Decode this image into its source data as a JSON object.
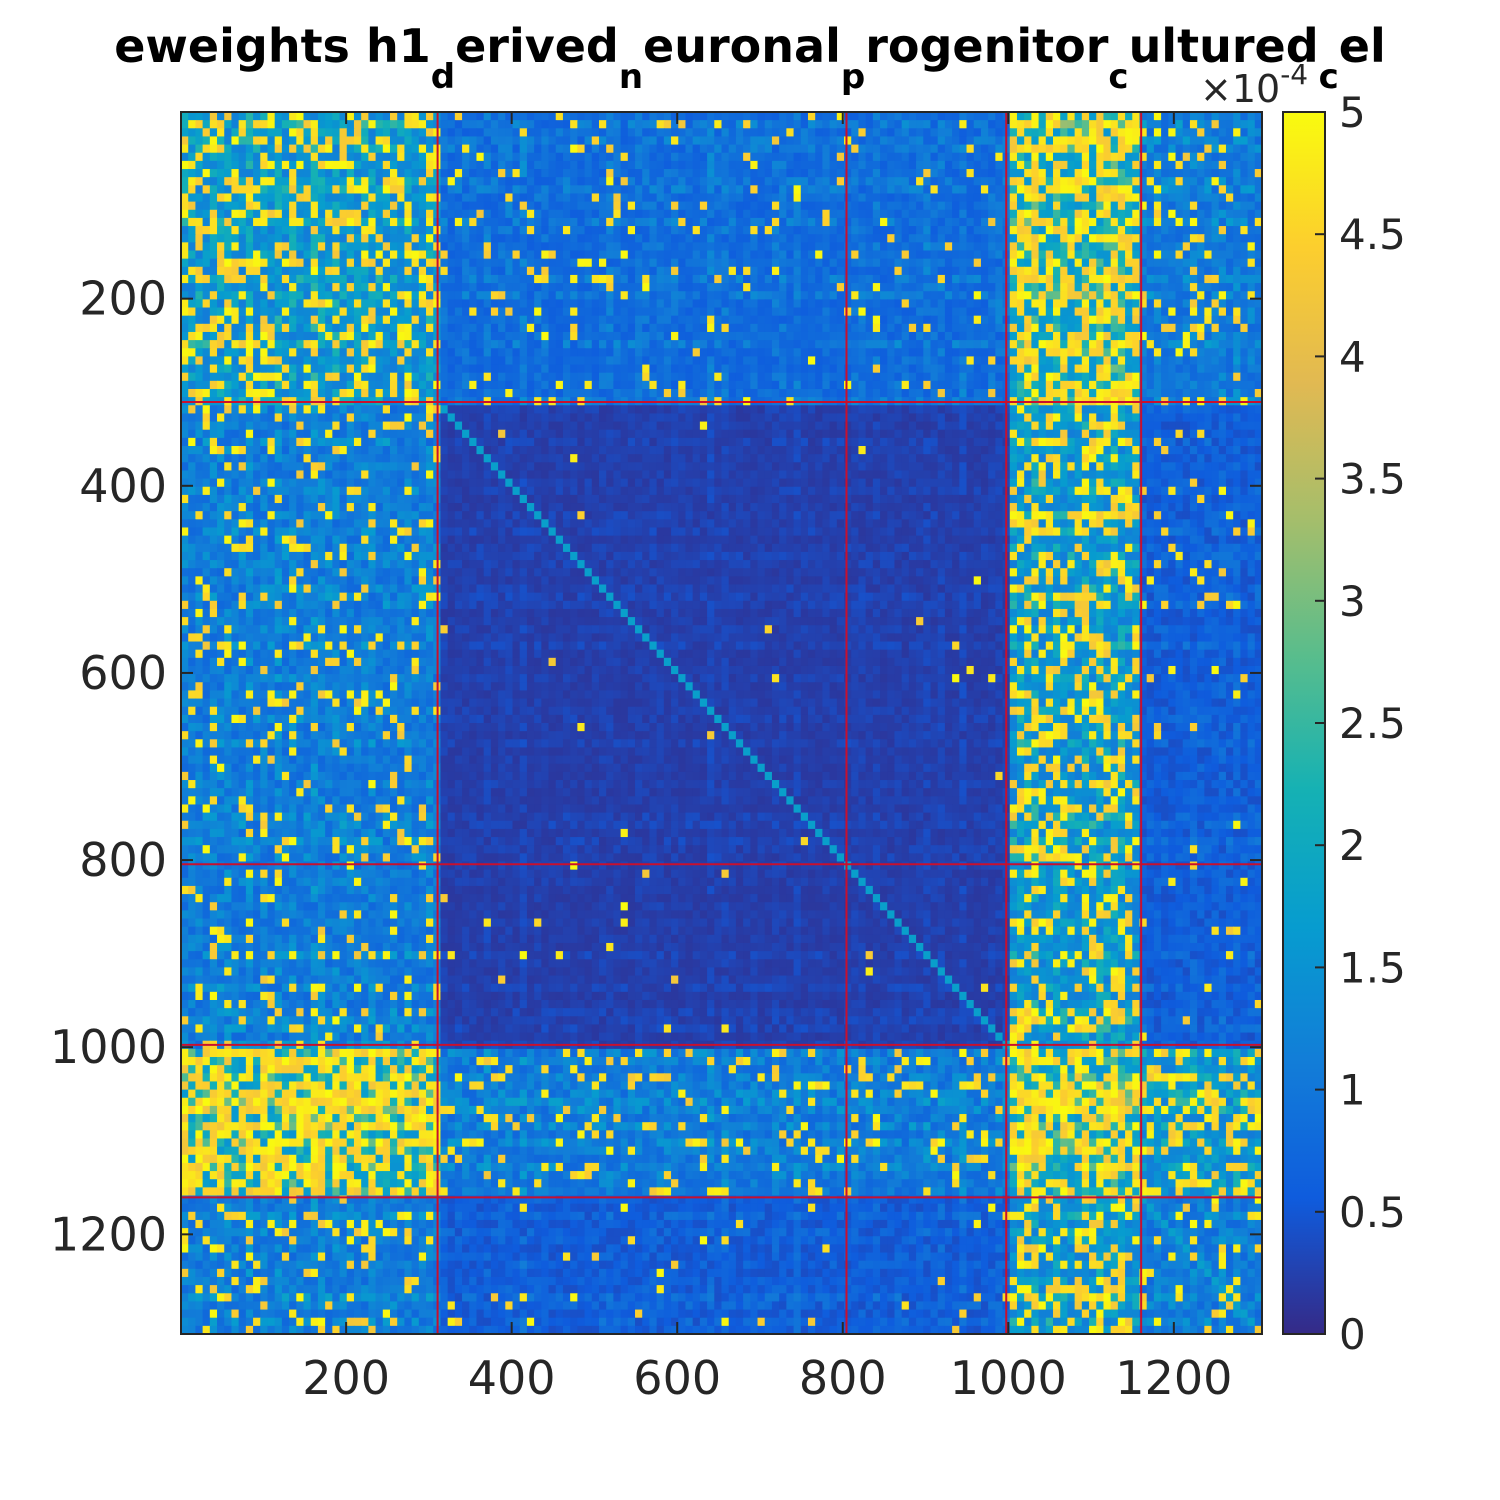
{
  "chart_data": {
    "type": "heatmap",
    "title": {
      "segments": [
        {
          "text": "eweights h1",
          "sub": false
        },
        {
          "text": "d",
          "sub": true
        },
        {
          "text": "erived",
          "sub": false
        },
        {
          "text": "n",
          "sub": true
        },
        {
          "text": "euronal",
          "sub": false
        },
        {
          "text": "p",
          "sub": true
        },
        {
          "text": "rogenitor",
          "sub": false
        },
        {
          "text": "c",
          "sub": true
        },
        {
          "text": "ultured",
          "sub": false
        },
        {
          "text": "c",
          "sub": true
        },
        {
          "text": "el",
          "sub": false
        }
      ]
    },
    "matrix_size": 1306,
    "xlim": [
      0.5,
      1306.5
    ],
    "ylim": [
      0.5,
      1306.5
    ],
    "x_ticks": [
      "200",
      "400",
      "600",
      "800",
      "1000",
      "1200"
    ],
    "y_ticks": [
      "200",
      "400",
      "600",
      "800",
      "1000",
      "1200"
    ],
    "tick_values": [
      200,
      400,
      600,
      800,
      1000,
      1200
    ],
    "block_boundaries": [
      310,
      804,
      997,
      1160
    ],
    "block_line_color": "#c8102e",
    "colormap": "parula",
    "color_limits": [
      0,
      0.0005
    ],
    "colorbar": {
      "exponent_label": "×10",
      "exponent_power": "-4",
      "tick_labels": [
        "0",
        "0.5",
        "1",
        "1.5",
        "2",
        "2.5",
        "3",
        "3.5",
        "4",
        "4.5",
        "5"
      ],
      "tick_values": [
        0,
        0.5,
        1,
        1.5,
        2,
        2.5,
        3,
        3.5,
        4,
        4.5,
        5
      ]
    },
    "blocks": [
      {
        "row_block": 1,
        "col_block": 1,
        "intensity": "high"
      },
      {
        "row_block": 1,
        "col_block": 2,
        "intensity": "low-medium"
      },
      {
        "row_block": 1,
        "col_block": 3,
        "intensity": "low-medium"
      },
      {
        "row_block": 1,
        "col_block": 4,
        "intensity": "very high"
      },
      {
        "row_block": 1,
        "col_block": 5,
        "intensity": "medium"
      },
      {
        "row_block": 2,
        "col_block": 1,
        "intensity": "medium"
      },
      {
        "row_block": 2,
        "col_block": 2,
        "intensity": "very low"
      },
      {
        "row_block": 2,
        "col_block": 3,
        "intensity": "very low"
      },
      {
        "row_block": 2,
        "col_block": 4,
        "intensity": "high"
      },
      {
        "row_block": 2,
        "col_block": 5,
        "intensity": "low"
      },
      {
        "row_block": 3,
        "col_block": 1,
        "intensity": "medium"
      },
      {
        "row_block": 3,
        "col_block": 2,
        "intensity": "very low"
      },
      {
        "row_block": 3,
        "col_block": 3,
        "intensity": "very low"
      },
      {
        "row_block": 3,
        "col_block": 4,
        "intensity": "high"
      },
      {
        "row_block": 3,
        "col_block": 5,
        "intensity": "low"
      },
      {
        "row_block": 4,
        "col_block": 1,
        "intensity": "very high"
      },
      {
        "row_block": 4,
        "col_block": 2,
        "intensity": "medium"
      },
      {
        "row_block": 4,
        "col_block": 3,
        "intensity": "medium"
      },
      {
        "row_block": 4,
        "col_block": 4,
        "intensity": "very high"
      },
      {
        "row_block": 4,
        "col_block": 5,
        "intensity": "high"
      },
      {
        "row_block": 5,
        "col_block": 1,
        "intensity": "medium"
      },
      {
        "row_block": 5,
        "col_block": 2,
        "intensity": "low"
      },
      {
        "row_block": 5,
        "col_block": 3,
        "intensity": "low"
      },
      {
        "row_block": 5,
        "col_block": 4,
        "intensity": "high"
      },
      {
        "row_block": 5,
        "col_block": 5,
        "intensity": "medium"
      }
    ]
  }
}
